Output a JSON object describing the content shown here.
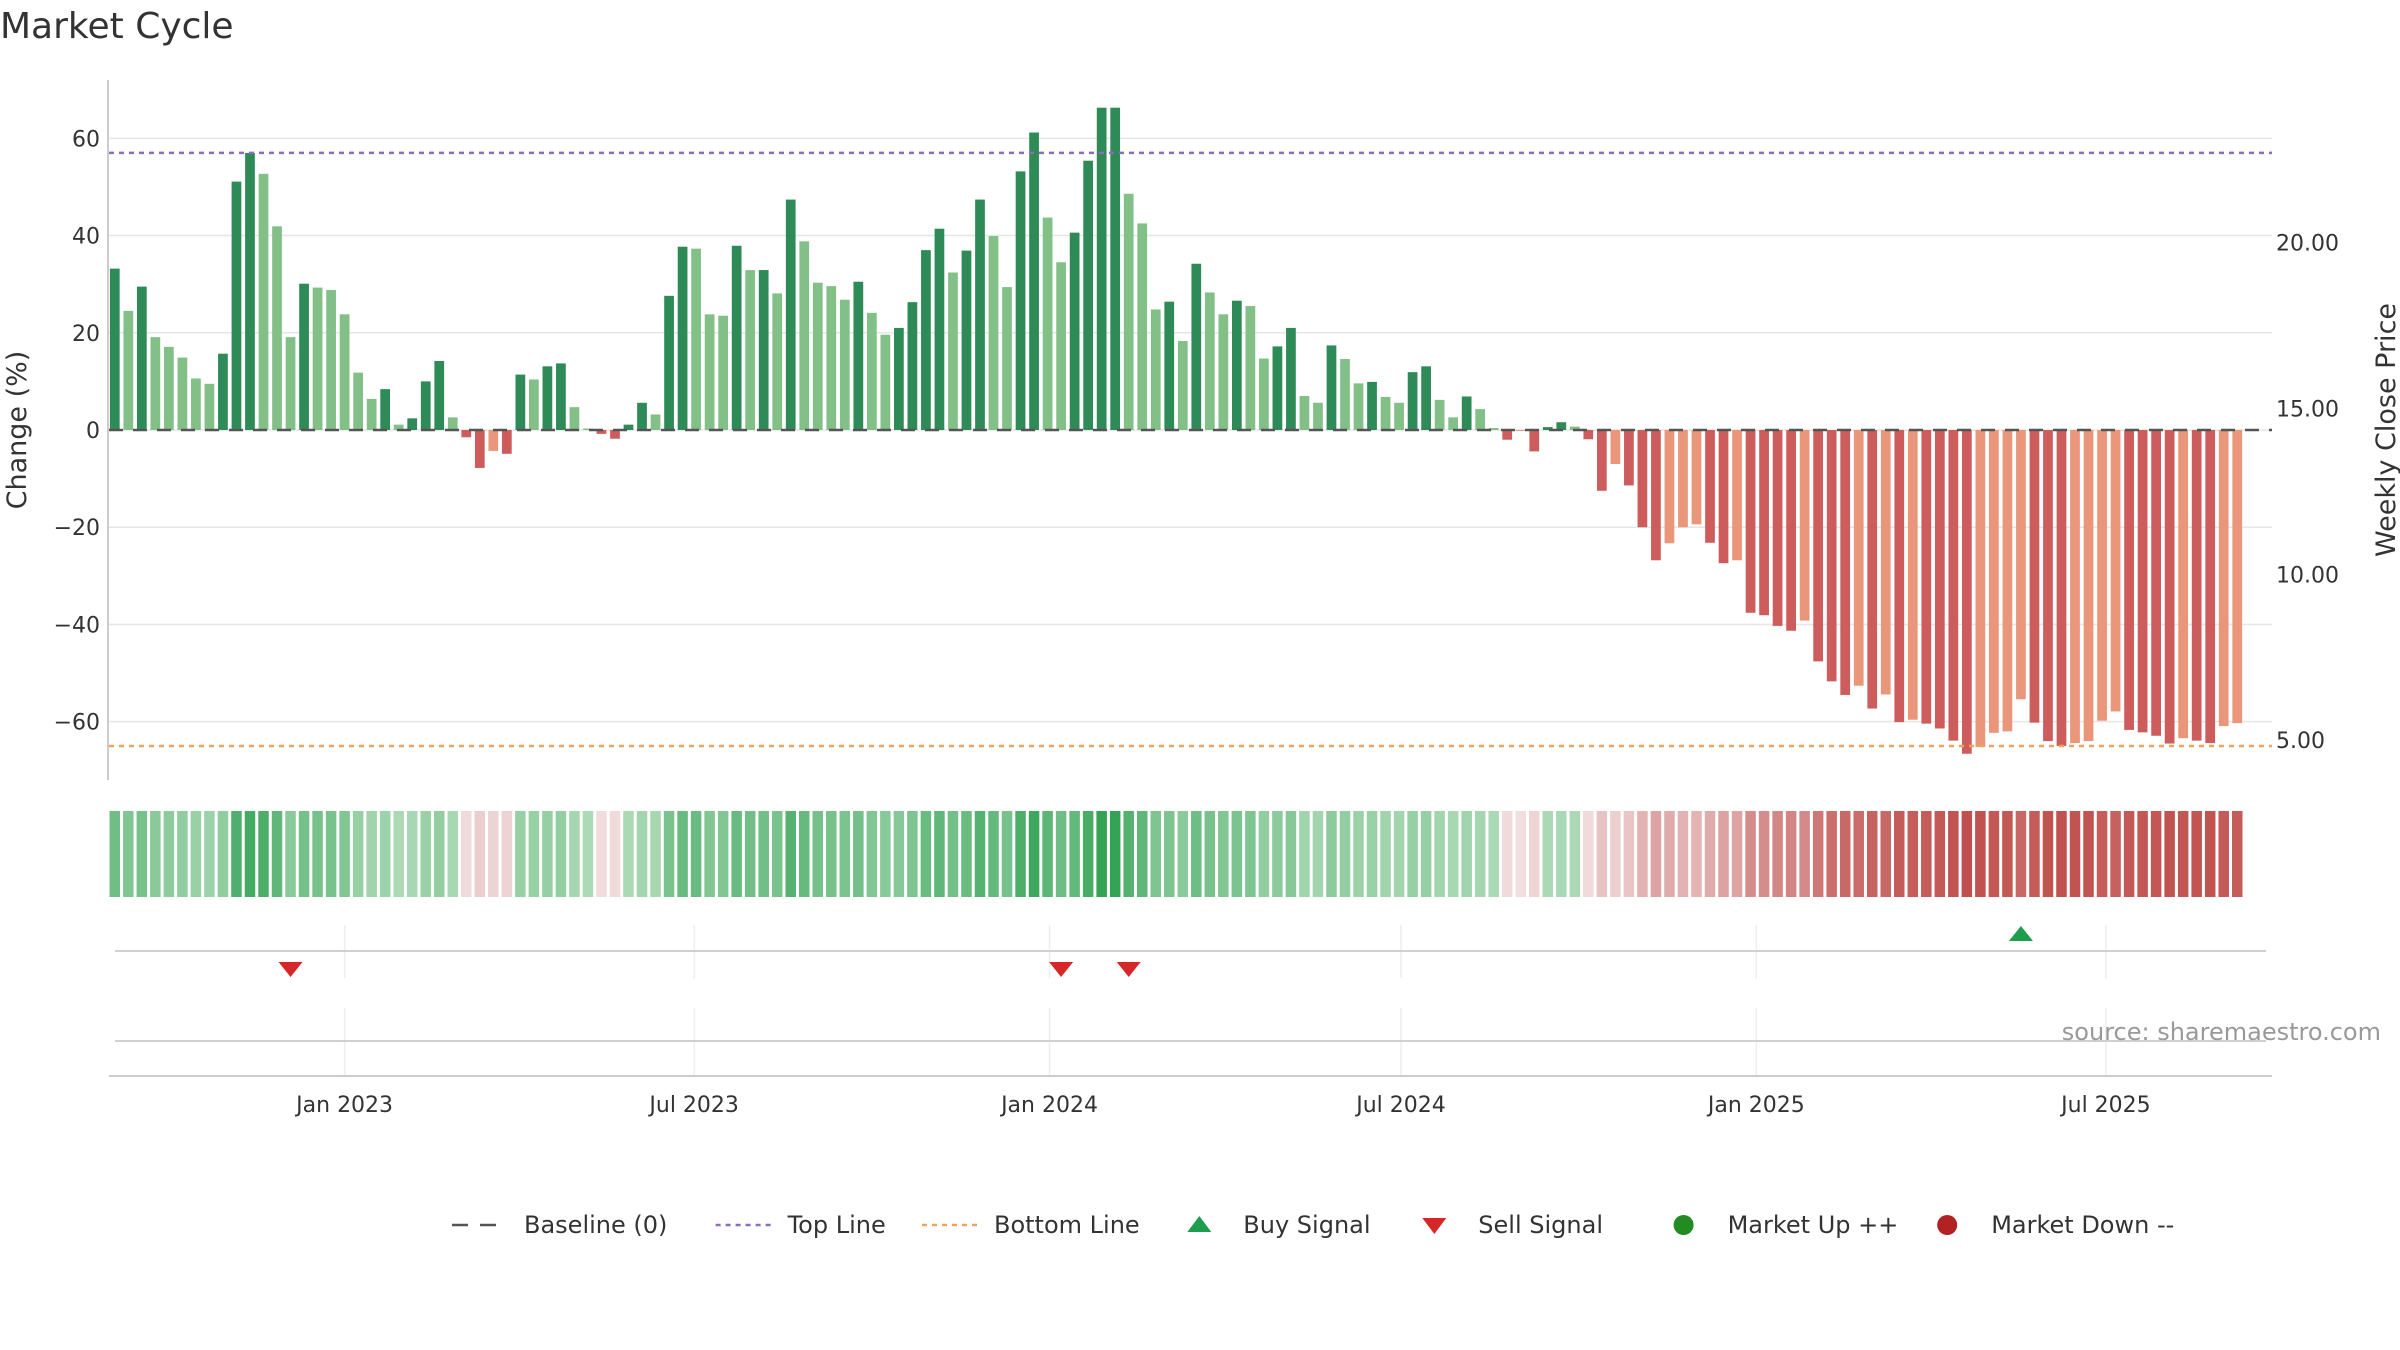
{
  "chart_data": {
    "type": "bar",
    "title": "Market Cycle",
    "ylabel": "Change (%)",
    "y2label": "Weekly Close Price",
    "ylim": [
      -72,
      72
    ],
    "y2lim": [
      3.8,
      24.9
    ],
    "yticks": [
      60,
      40,
      20,
      0,
      -20,
      -40,
      -60
    ],
    "ytick_labels": [
      "60",
      "40",
      "20",
      "0",
      "−20",
      "−40",
      "−60"
    ],
    "y2ticks": [
      20,
      15,
      10,
      5
    ],
    "y2tick_labels": [
      "20.00",
      "15.00",
      "10.00",
      "5.00"
    ],
    "xlim": [
      "2022-09-01",
      "2025-09-25"
    ],
    "xticks": [
      {
        "date": "2023-01-01",
        "label": "Jan 2023"
      },
      {
        "date": "2023-07-01",
        "label": "Jul 2023"
      },
      {
        "date": "2024-01-01",
        "label": "Jan 2024"
      },
      {
        "date": "2024-07-01",
        "label": "Jul 2024"
      },
      {
        "date": "2025-01-01",
        "label": "Jan 2025"
      },
      {
        "date": "2025-07-01",
        "label": "Jul 2025"
      }
    ],
    "weekly": {
      "start": "2022-09-04",
      "interval_days": 7,
      "values": [
        33.2,
        24.5,
        29.5,
        19.1,
        17.1,
        14.9,
        10.6,
        9.5,
        15.7,
        51.1,
        57.0,
        52.7,
        41.9,
        19.1,
        30.1,
        29.3,
        28.8,
        23.8,
        11.8,
        6.4,
        8.4,
        1.1,
        2.4,
        10.0,
        14.2,
        2.6,
        -1.5,
        -7.8,
        -4.3,
        -4.9,
        11.4,
        10.4,
        13.1,
        13.7,
        4.7,
        0.3,
        -0.8,
        -1.8,
        1.1,
        5.6,
        3.2,
        27.6,
        37.7,
        37.3,
        23.8,
        23.5,
        37.9,
        32.9,
        32.9,
        28.1,
        47.4,
        38.8,
        30.3,
        29.6,
        26.8,
        30.5,
        24.1,
        19.6,
        21.0,
        26.3,
        37.0,
        41.4,
        32.4,
        36.9,
        47.4,
        39.9,
        29.4,
        53.2,
        61.2,
        43.7,
        34.5,
        40.6,
        55.4,
        66.3,
        66.3,
        48.6,
        42.5,
        24.8,
        26.4,
        18.3,
        34.2,
        28.3,
        23.8,
        26.6,
        25.5,
        14.7,
        17.2,
        21.0,
        7.0,
        5.6,
        17.4,
        14.6,
        9.6,
        9.9,
        6.8,
        5.6,
        11.9,
        13.1,
        6.2,
        2.6,
        6.9,
        4.3,
        0.4,
        -2.0,
        -0.2,
        -4.4,
        0.6,
        1.6,
        0.7,
        -1.9,
        -12.5,
        -7.0,
        -11.4,
        -20.0,
        -26.8,
        -23.3,
        -20.0,
        -19.4,
        -23.2,
        -27.4,
        -26.8,
        -37.6,
        -38.1,
        -40.3,
        -41.3,
        -39.2,
        -47.6,
        -51.7,
        -54.5,
        -52.6,
        -57.3,
        -54.4,
        -60.1,
        -59.6,
        -60.4,
        -61.4,
        -63.9,
        -66.6,
        -65.2,
        -62.3,
        -62.0,
        -55.4,
        -60.2,
        -64.0,
        -65.0,
        -64.4,
        -64.0,
        -59.8,
        -57.9,
        -61.7,
        -62.2,
        -62.9,
        -64.5,
        -63.4,
        -63.9,
        -64.4,
        -60.9,
        -60.3
      ]
    },
    "reference_lines": [
      {
        "name": "Baseline (0)",
        "y": 0,
        "color": "#555555",
        "style": "dashed"
      },
      {
        "name": "Top Line",
        "y": 57,
        "color": "#8e6bbf",
        "style": "dotted"
      },
      {
        "name": "Bottom Line",
        "y": -65,
        "color": "#f0a15a",
        "style": "dotted"
      }
    ],
    "signals": [
      {
        "type": "sell",
        "date": "2022-12-04"
      },
      {
        "type": "sell",
        "date": "2024-01-07"
      },
      {
        "type": "sell",
        "date": "2024-02-11"
      },
      {
        "type": "buy",
        "date": "2025-05-18"
      }
    ],
    "colors": {
      "up_strong": "#2e8b57",
      "up_weak": "#82c088",
      "down_strong": "#cd5c5c",
      "down_weak": "#e9967a",
      "buy": "#1e9e4c",
      "sell": "#d62728",
      "market_up": "#228b22",
      "market_down": "#b22222",
      "heat_up": "#35a356",
      "heat_down": "#c0504d",
      "heat_neutral": "#f1dede",
      "grid": "#e6e6e6",
      "axis": "#cccccc"
    },
    "legend": {
      "position": "bottom",
      "entries": [
        {
          "label": "Baseline (0)",
          "marker": "dash",
          "color": "#555555"
        },
        {
          "label": "Top Line",
          "marker": "dotted",
          "color": "#8e6bbf"
        },
        {
          "label": "Bottom Line",
          "marker": "dotted",
          "color": "#f0a15a"
        },
        {
          "label": "Buy Signal",
          "marker": "triangle-up",
          "color": "#1e9e4c"
        },
        {
          "label": "Sell Signal",
          "marker": "triangle-down",
          "color": "#d62728"
        },
        {
          "label": "Market Up ++",
          "marker": "circle",
          "color": "#228b22"
        },
        {
          "label": "Market Down --",
          "marker": "circle",
          "color": "#b22222"
        }
      ]
    },
    "annotation": "source: sharemaestro.com"
  }
}
